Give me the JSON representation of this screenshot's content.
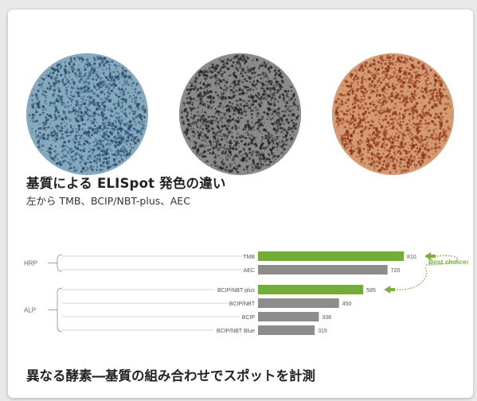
{
  "image_caption": {
    "title": "基質による ELISpot 発色の違い",
    "subtitle": "左から TMB、BCIP/NBT-plus、AEC"
  },
  "wells": [
    {
      "name": "TMB",
      "colors": {
        "base": "#86a9bd",
        "spot": "#274b6b"
      }
    },
    {
      "name": "BCIP/NBT-plus",
      "colors": {
        "base": "#8a8a8a",
        "spot": "#202020"
      }
    },
    {
      "name": "AEC",
      "colors": {
        "base": "#d59a72",
        "spot": "#8a3418"
      }
    }
  ],
  "chart_data": {
    "type": "bar",
    "orientation": "horizontal",
    "groups": [
      {
        "label": "HRP",
        "categories": [
          "TMB",
          "AEC"
        ]
      },
      {
        "label": "ALP",
        "categories": [
          "BCIP/NBT plus",
          "BCIP/NBT",
          "BCIP",
          "BCIP/NBT Blue"
        ]
      }
    ],
    "categories": [
      "TMB",
      "AEC",
      "BCIP/NBT plus",
      "BCIP/NBT",
      "BCIP",
      "BCIP/NBT Blue"
    ],
    "values": [
      810,
      720,
      585,
      450,
      338,
      315
    ],
    "highlight": [
      "TMB",
      "BCIP/NBT plus"
    ],
    "annotation": "Best choices!",
    "colors": {
      "highlight": "#72ad38",
      "normal": "#8c8c8c",
      "annotation": "#7ab040"
    },
    "grid": false,
    "legend": "none"
  },
  "bottom_caption": "異なる酵素―基質の組み合わせでスポットを計測"
}
